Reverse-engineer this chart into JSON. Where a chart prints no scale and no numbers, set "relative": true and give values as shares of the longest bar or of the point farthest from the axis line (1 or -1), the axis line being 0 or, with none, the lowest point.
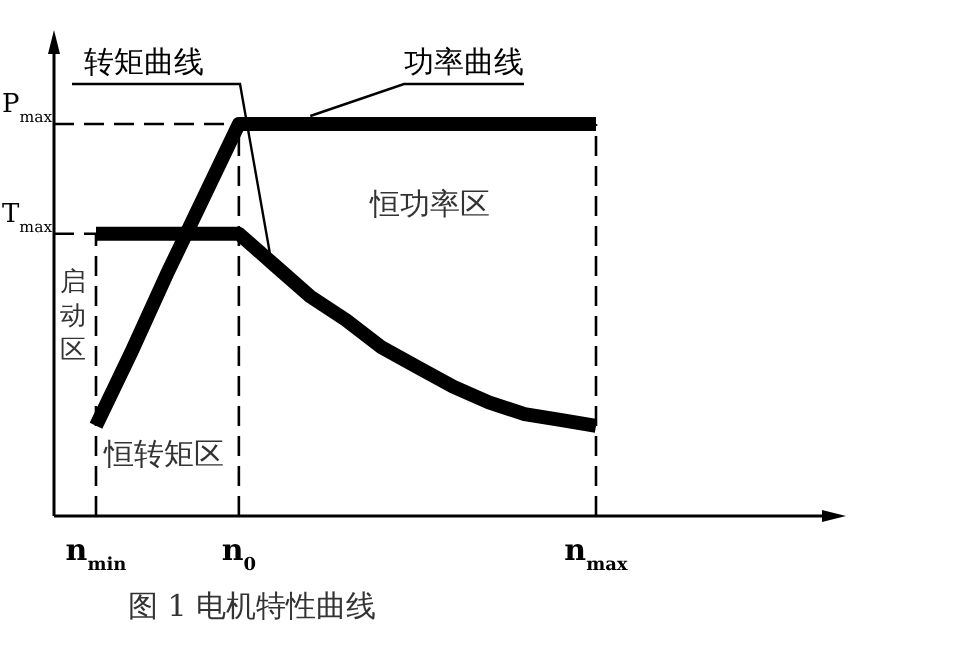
{
  "chart_data": {
    "type": "line",
    "relative": true,
    "categories": [
      "n$_{min}$",
      null,
      null,
      null,
      "n$_{0}$",
      null,
      null,
      null,
      null,
      null,
      null,
      null,
      null,
      null,
      "n$_{max}$"
    ],
    "series": [
      {
        "name": "转矩曲线",
        "color": "#000000",
        "values": [
          0.72,
          0.72,
          0.72,
          0.72,
          0.72,
          0.64,
          0.56,
          0.5,
          0.43,
          0.38,
          0.33,
          0.29,
          0.26,
          0.245,
          0.23
        ]
      },
      {
        "name": "功率曲线",
        "color": "#000000",
        "values": [
          0.23,
          0.42,
          0.62,
          0.81,
          1,
          1,
          1,
          1,
          1,
          1,
          1,
          1,
          1,
          1,
          1
        ]
      }
    ],
    "ref_lines": [
      {
        "axis": "y",
        "value": 1,
        "label": "P$_{max}$",
        "line_style": "dashed"
      },
      {
        "axis": "y",
        "value": 0.72,
        "label": "T$_{max}$",
        "line_style": "dashed"
      }
    ],
    "annotations": [
      "启动区",
      "恒转矩区",
      "恒功率区",
      "图 1 电机特性曲线"
    ],
    "line_style": "solid",
    "grid": "x"
  }
}
